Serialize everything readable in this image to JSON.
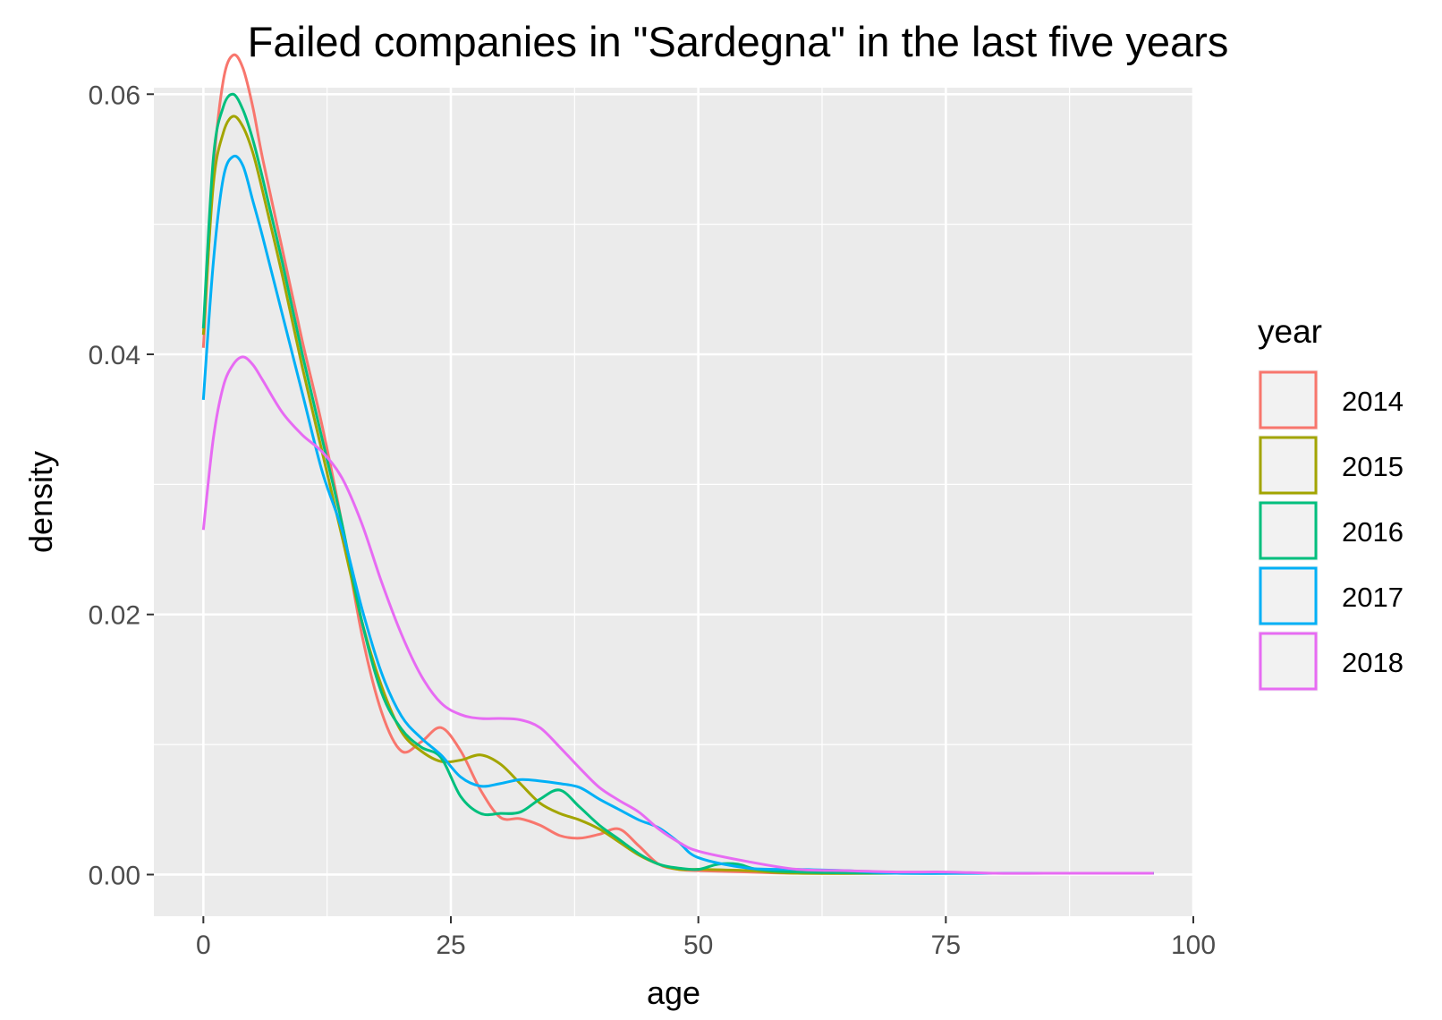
{
  "chart_data": {
    "type": "line",
    "title": "Failed companies in \"Sardegna\" in the last five years",
    "xlabel": "age",
    "ylabel": "density",
    "xlim": [
      -5,
      100
    ],
    "ylim": [
      -0.0032,
      0.0605
    ],
    "x_ticks": [
      0,
      25,
      50,
      75,
      100
    ],
    "x_tick_labels": [
      "0",
      "25",
      "50",
      "75",
      "100"
    ],
    "y_ticks": [
      0,
      0.02,
      0.04,
      0.06
    ],
    "y_tick_labels": [
      "0.00",
      "0.02",
      "0.04",
      "0.06"
    ],
    "grid": true,
    "legend_title": "year",
    "legend_position": "right",
    "series": [
      {
        "name": "2014",
        "color": "#F8766D",
        "x": [
          0,
          1,
          2,
          3,
          4,
          5,
          6,
          8,
          10,
          12,
          14,
          16,
          18,
          20,
          22,
          24,
          26,
          28,
          30,
          32,
          34,
          36,
          38,
          40,
          42,
          44,
          46,
          48,
          50,
          55,
          60,
          70,
          80,
          96
        ],
        "y": [
          0.0405,
          0.054,
          0.061,
          0.063,
          0.062,
          0.059,
          0.055,
          0.048,
          0.041,
          0.0345,
          0.027,
          0.0185,
          0.0125,
          0.0095,
          0.0102,
          0.0113,
          0.0095,
          0.0065,
          0.0044,
          0.0043,
          0.0038,
          0.003,
          0.0028,
          0.0031,
          0.0035,
          0.0022,
          0.0008,
          0.0004,
          0.0003,
          0.0002,
          0.0001,
          0.0001,
          0.0001,
          0.0001
        ]
      },
      {
        "name": "2015",
        "color": "#A3A500",
        "x": [
          0,
          1,
          2,
          3,
          4,
          5,
          6,
          8,
          10,
          12,
          14,
          16,
          18,
          20,
          22,
          24,
          26,
          28,
          30,
          32,
          34,
          36,
          38,
          40,
          42,
          44,
          46,
          48,
          50,
          55,
          60,
          70,
          80,
          96
        ],
        "y": [
          0.0415,
          0.053,
          0.057,
          0.0583,
          0.0575,
          0.0555,
          0.0525,
          0.046,
          0.039,
          0.0325,
          0.026,
          0.0195,
          0.0145,
          0.011,
          0.0095,
          0.0087,
          0.0088,
          0.0092,
          0.0085,
          0.007,
          0.0055,
          0.0047,
          0.0042,
          0.0035,
          0.0025,
          0.0015,
          0.0008,
          0.0004,
          0.0004,
          0.0003,
          0.0001,
          0.0001,
          0.0001,
          0.0001
        ]
      },
      {
        "name": "2016",
        "color": "#00BF7D",
        "x": [
          0,
          1,
          2,
          3,
          4,
          5,
          6,
          8,
          10,
          12,
          14,
          16,
          18,
          20,
          22,
          24,
          26,
          28,
          30,
          32,
          34,
          36,
          38,
          40,
          42,
          44,
          46,
          48,
          50,
          52,
          54,
          56,
          60,
          70,
          80,
          96
        ],
        "y": [
          0.042,
          0.055,
          0.059,
          0.06,
          0.0588,
          0.0565,
          0.0535,
          0.047,
          0.04,
          0.0335,
          0.027,
          0.0195,
          0.014,
          0.0112,
          0.0098,
          0.009,
          0.006,
          0.0047,
          0.0047,
          0.0048,
          0.0058,
          0.0065,
          0.0052,
          0.0038,
          0.0027,
          0.0016,
          0.0008,
          0.0005,
          0.0004,
          0.0008,
          0.0008,
          0.0004,
          0.0002,
          0.0001,
          0.0001,
          0.0001
        ]
      },
      {
        "name": "2017",
        "color": "#00B0F6",
        "x": [
          0,
          1,
          2,
          3,
          4,
          5,
          6,
          8,
          10,
          12,
          14,
          16,
          18,
          20,
          22,
          24,
          26,
          28,
          30,
          32,
          34,
          36,
          38,
          40,
          42,
          44,
          46,
          48,
          50,
          55,
          60,
          65,
          70,
          80,
          96
        ],
        "y": [
          0.0365,
          0.047,
          0.0535,
          0.0552,
          0.0545,
          0.0518,
          0.049,
          0.043,
          0.037,
          0.031,
          0.0265,
          0.0205,
          0.0155,
          0.0122,
          0.0105,
          0.0092,
          0.0075,
          0.0068,
          0.007,
          0.0073,
          0.0072,
          0.007,
          0.0067,
          0.0058,
          0.005,
          0.0042,
          0.0036,
          0.0025,
          0.0013,
          0.0005,
          0.0004,
          0.0003,
          0.0001,
          0.0001,
          0.0001
        ]
      },
      {
        "name": "2018",
        "color": "#E76BF3",
        "x": [
          0,
          1,
          2,
          3,
          4,
          5,
          6,
          8,
          10,
          12,
          14,
          16,
          18,
          20,
          22,
          24,
          26,
          28,
          30,
          32,
          34,
          36,
          38,
          40,
          42,
          44,
          46,
          48,
          50,
          55,
          60,
          65,
          70,
          75,
          80,
          85,
          90,
          96
        ],
        "y": [
          0.0265,
          0.0335,
          0.0375,
          0.0392,
          0.0398,
          0.0392,
          0.038,
          0.0355,
          0.0338,
          0.0325,
          0.0305,
          0.027,
          0.0225,
          0.0185,
          0.0153,
          0.0132,
          0.0123,
          0.012,
          0.012,
          0.0119,
          0.0113,
          0.0098,
          0.0082,
          0.0067,
          0.0057,
          0.0048,
          0.0035,
          0.0025,
          0.0018,
          0.001,
          0.0004,
          0.0003,
          0.0002,
          0.0002,
          0.0001,
          0.0001,
          0.0001,
          0.0001
        ]
      }
    ]
  }
}
